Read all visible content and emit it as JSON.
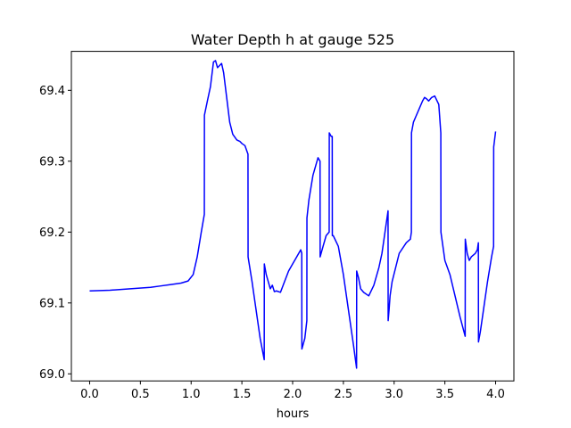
{
  "chart_data": {
    "type": "line",
    "title": "Water Depth h at gauge 525",
    "xlabel": "hours",
    "ylabel": "",
    "xlim": [
      -0.18,
      4.18
    ],
    "ylim": [
      68.99,
      69.455
    ],
    "x_ticks": [
      0.0,
      0.5,
      1.0,
      1.5,
      2.0,
      2.5,
      3.0,
      3.5,
      4.0
    ],
    "x_tick_labels": [
      "0.0",
      "0.5",
      "1.0",
      "1.5",
      "2.0",
      "2.5",
      "3.0",
      "3.5",
      "4.0"
    ],
    "y_ticks": [
      69.0,
      69.1,
      69.2,
      69.3,
      69.4
    ],
    "y_tick_labels": [
      "69.0",
      "69.1",
      "69.2",
      "69.3",
      "69.4"
    ],
    "grid": false,
    "line_color": "#0000ff",
    "series": [
      {
        "x": [
          0.0,
          0.2,
          0.4,
          0.6,
          0.7,
          0.8,
          0.9,
          0.97,
          1.02,
          1.06,
          1.1,
          1.13,
          1.131,
          1.16,
          1.19,
          1.22,
          1.24,
          1.26,
          1.28,
          1.3,
          1.32,
          1.35,
          1.38,
          1.41,
          1.45,
          1.48,
          1.5,
          1.53,
          1.56,
          1.561,
          1.6,
          1.64,
          1.68,
          1.72,
          1.721,
          1.74,
          1.76,
          1.78,
          1.8,
          1.82,
          1.84,
          1.88,
          1.92,
          1.96,
          2.0,
          2.04,
          2.08,
          2.09,
          2.091,
          2.12,
          2.14,
          2.141,
          2.16,
          2.2,
          2.25,
          2.27,
          2.271,
          2.3,
          2.33,
          2.36,
          2.361,
          2.38,
          2.39,
          2.391,
          2.4,
          2.45,
          2.5,
          2.55,
          2.6,
          2.63,
          2.631,
          2.65,
          2.67,
          2.7,
          2.75,
          2.8,
          2.85,
          2.88,
          2.9,
          2.92,
          2.94,
          2.941,
          2.95,
          2.96,
          2.98,
          3.05,
          3.12,
          3.16,
          3.17,
          3.171,
          3.19,
          3.22,
          3.25,
          3.28,
          3.3,
          3.32,
          3.34,
          3.37,
          3.4,
          3.44,
          3.46,
          3.461,
          3.5,
          3.55,
          3.6,
          3.65,
          3.7,
          3.701,
          3.72,
          3.74,
          3.76,
          3.8,
          3.82,
          3.83,
          3.831,
          3.85,
          3.88,
          3.92,
          3.96,
          3.98,
          3.981,
          4.0
        ],
        "values": [
          69.117,
          69.118,
          69.12,
          69.122,
          69.124,
          69.126,
          69.128,
          69.131,
          69.14,
          69.165,
          69.2,
          69.225,
          69.365,
          69.385,
          69.405,
          69.44,
          69.442,
          69.432,
          69.435,
          69.438,
          69.425,
          69.39,
          69.355,
          69.338,
          69.33,
          69.328,
          69.325,
          69.322,
          69.31,
          69.165,
          69.13,
          69.09,
          69.05,
          69.02,
          69.155,
          69.14,
          69.13,
          69.12,
          69.125,
          69.116,
          69.117,
          69.115,
          69.13,
          69.145,
          69.155,
          69.165,
          69.175,
          69.17,
          69.035,
          69.05,
          69.075,
          69.22,
          69.245,
          69.28,
          69.305,
          69.3,
          69.165,
          69.18,
          69.195,
          69.2,
          69.34,
          69.335,
          69.335,
          69.195,
          69.195,
          69.18,
          69.14,
          69.09,
          69.04,
          69.008,
          69.145,
          69.135,
          69.12,
          69.115,
          69.11,
          69.125,
          69.15,
          69.17,
          69.19,
          69.21,
          69.23,
          69.075,
          69.09,
          69.11,
          69.13,
          69.17,
          69.185,
          69.19,
          69.2,
          69.34,
          69.355,
          69.365,
          69.375,
          69.385,
          69.39,
          69.388,
          69.385,
          69.39,
          69.392,
          69.38,
          69.34,
          69.2,
          69.16,
          69.14,
          69.11,
          69.08,
          69.053,
          69.19,
          69.17,
          69.16,
          69.165,
          69.17,
          69.175,
          69.185,
          69.045,
          69.06,
          69.09,
          69.13,
          69.165,
          69.18,
          69.32,
          69.342
        ]
      }
    ]
  }
}
